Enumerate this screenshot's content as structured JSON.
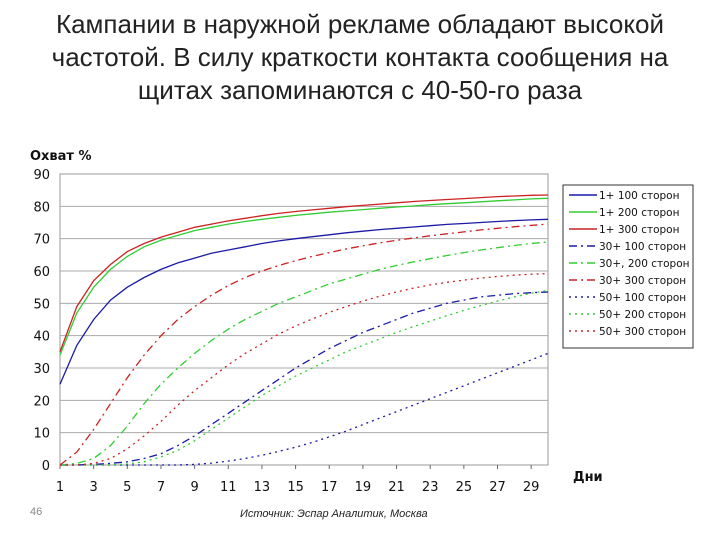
{
  "slide": {
    "title_lines": [
      "Кампании в наружной рекламе обладают высокой",
      "частотой. В силу краткости контакта сообщения на",
      "щитах запоминаются с 40-50-го раза"
    ],
    "number": "46",
    "source": "Источник: Эспар Аналитик, Москва"
  },
  "chart_data": {
    "type": "line",
    "ylabel": "Охват %",
    "xlabel": "Дни",
    "xlim": [
      1,
      30
    ],
    "ylim": [
      0,
      90
    ],
    "grid": true,
    "legend": "right",
    "x": [
      1,
      2,
      3,
      4,
      5,
      6,
      7,
      8,
      9,
      10,
      11,
      12,
      13,
      14,
      15,
      16,
      17,
      18,
      19,
      20,
      21,
      22,
      23,
      24,
      25,
      26,
      27,
      28,
      29,
      30
    ],
    "x_ticks": [
      "1",
      "3",
      "5",
      "7",
      "9",
      "11",
      "13",
      "15",
      "17",
      "19",
      "21",
      "23",
      "25",
      "27",
      "29"
    ],
    "y_ticks": [
      "0",
      "10",
      "20",
      "30",
      "40",
      "50",
      "60",
      "70",
      "80",
      "90"
    ],
    "series": [
      {
        "name": "1+ 100 сторон",
        "color": "#1a1aa6",
        "dash": "solid",
        "values": [
          25,
          37,
          45,
          51,
          55,
          58,
          60.5,
          62.5,
          64,
          65.5,
          66.5,
          67.5,
          68.5,
          69.3,
          70,
          70.6,
          71.2,
          71.8,
          72.3,
          72.8,
          73.2,
          73.6,
          74,
          74.4,
          74.7,
          75,
          75.3,
          75.6,
          75.8,
          76
        ]
      },
      {
        "name": "1+ 200 сторон",
        "color": "#33cc33",
        "dash": "solid",
        "values": [
          34,
          47,
          55,
          60.5,
          64.5,
          67.5,
          69.5,
          71,
          72.5,
          73.5,
          74.5,
          75.3,
          76,
          76.6,
          77.2,
          77.7,
          78.2,
          78.6,
          79,
          79.4,
          79.8,
          80.1,
          80.5,
          80.8,
          81.1,
          81.4,
          81.7,
          82,
          82.3,
          82.5
        ]
      },
      {
        "name": "1+ 300 сторон",
        "color": "#cc2222",
        "dash": "solid",
        "values": [
          35,
          49,
          57,
          62,
          66,
          68.5,
          70.5,
          72,
          73.5,
          74.5,
          75.5,
          76.3,
          77.1,
          77.8,
          78.4,
          78.9,
          79.4,
          79.9,
          80.3,
          80.7,
          81.1,
          81.5,
          81.8,
          82.1,
          82.4,
          82.7,
          83,
          83.2,
          83.4,
          83.5
        ]
      },
      {
        "name": "30+ 100 сторон",
        "color": "#1a1aa6",
        "dash": "8,4,2,4",
        "values": [
          0,
          0,
          0.2,
          0.5,
          1,
          2,
          3.5,
          6,
          9,
          12.5,
          16,
          19.5,
          23,
          26.5,
          30,
          33,
          36,
          38.5,
          41,
          43,
          45,
          47,
          48.5,
          50,
          51,
          52,
          52.5,
          53,
          53.3,
          53.5
        ]
      },
      {
        "name": "30+, 200 сторон",
        "color": "#33cc33",
        "dash": "8,4,2,4",
        "values": [
          0,
          0.5,
          2,
          6,
          12,
          19,
          25,
          30,
          34.5,
          38.5,
          42,
          45,
          47.5,
          50,
          52,
          54,
          56,
          57.5,
          59,
          60.5,
          61.7,
          62.8,
          63.8,
          64.8,
          65.7,
          66.5,
          67.2,
          67.9,
          68.5,
          69
        ]
      },
      {
        "name": "30+ 300 сторон",
        "color": "#cc2222",
        "dash": "8,4,2,4",
        "values": [
          0,
          4,
          11,
          19,
          27,
          34,
          40,
          45,
          49,
          52.5,
          55.5,
          58,
          60,
          61.7,
          63.2,
          64.5,
          65.7,
          66.8,
          67.8,
          68.7,
          69.5,
          70.2,
          70.9,
          71.5,
          72.1,
          72.7,
          73.2,
          73.7,
          74.1,
          74.5
        ]
      },
      {
        "name": "50+ 100 сторон",
        "color": "#1a1aa6",
        "dash": "2,4",
        "values": [
          0,
          0,
          0,
          0,
          0,
          0,
          0,
          0,
          0.2,
          0.6,
          1.2,
          2,
          3,
          4.2,
          5.5,
          7,
          8.7,
          10.5,
          12.5,
          14.5,
          16.5,
          18.5,
          20.5,
          22.5,
          24.5,
          26.5,
          28.5,
          30.5,
          32.5,
          34.5
        ]
      },
      {
        "name": "50+ 200 сторон",
        "color": "#33cc33",
        "dash": "2,4",
        "values": [
          0,
          0,
          0,
          0,
          0.3,
          1,
          2.5,
          4.5,
          7.5,
          11,
          14.5,
          18,
          21.5,
          24.5,
          27.5,
          30,
          32.5,
          35,
          37,
          39,
          41,
          42.8,
          44.5,
          46.2,
          47.8,
          49.3,
          50.7,
          52,
          53.1,
          54
        ]
      },
      {
        "name": "50+ 300 сторон",
        "color": "#cc2222",
        "dash": "2,4",
        "values": [
          0,
          0,
          0.5,
          2,
          5,
          9,
          13.5,
          18.5,
          23,
          27,
          31,
          34.5,
          37.5,
          40.5,
          43,
          45.2,
          47.2,
          49,
          50.7,
          52.2,
          53.5,
          54.7,
          55.7,
          56.5,
          57.2,
          57.8,
          58.3,
          58.7,
          59,
          59.2
        ]
      }
    ]
  }
}
